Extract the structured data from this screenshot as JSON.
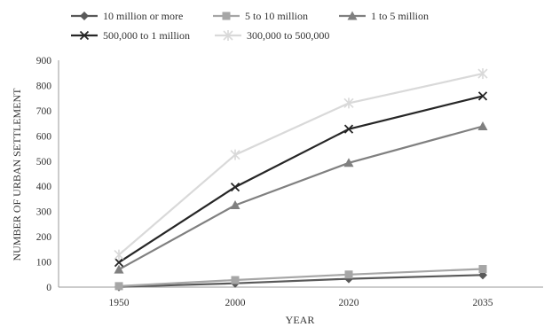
{
  "chart_data": {
    "type": "line",
    "x": [
      "1950",
      "2000",
      "2020",
      "2035"
    ],
    "xlabel": "YEAR",
    "ylabel": "NUMBER OF URBAN SETTLEMENT",
    "ylim": [
      0,
      900
    ],
    "yticks": [
      0,
      100,
      200,
      300,
      400,
      500,
      600,
      700,
      800,
      900
    ],
    "grid": false,
    "legend_position": "top",
    "series": [
      {
        "name": "10 million or more",
        "values": [
          1,
          15,
          33,
          48
        ],
        "color": "#595959",
        "marker": "diamond"
      },
      {
        "name": "5 to 10 million",
        "values": [
          4,
          28,
          50,
          72
        ],
        "color": "#a6a6a6",
        "marker": "square"
      },
      {
        "name": "1 to 5 million",
        "values": [
          70,
          325,
          493,
          638
        ],
        "color": "#808080",
        "marker": "triangle"
      },
      {
        "name": "500,000 to 1 million",
        "values": [
          98,
          397,
          627,
          758
        ],
        "color": "#262626",
        "marker": "x"
      },
      {
        "name": "300,000 to 500,000",
        "values": [
          128,
          525,
          730,
          847
        ],
        "color": "#d9d9d9",
        "marker": "star"
      }
    ]
  }
}
